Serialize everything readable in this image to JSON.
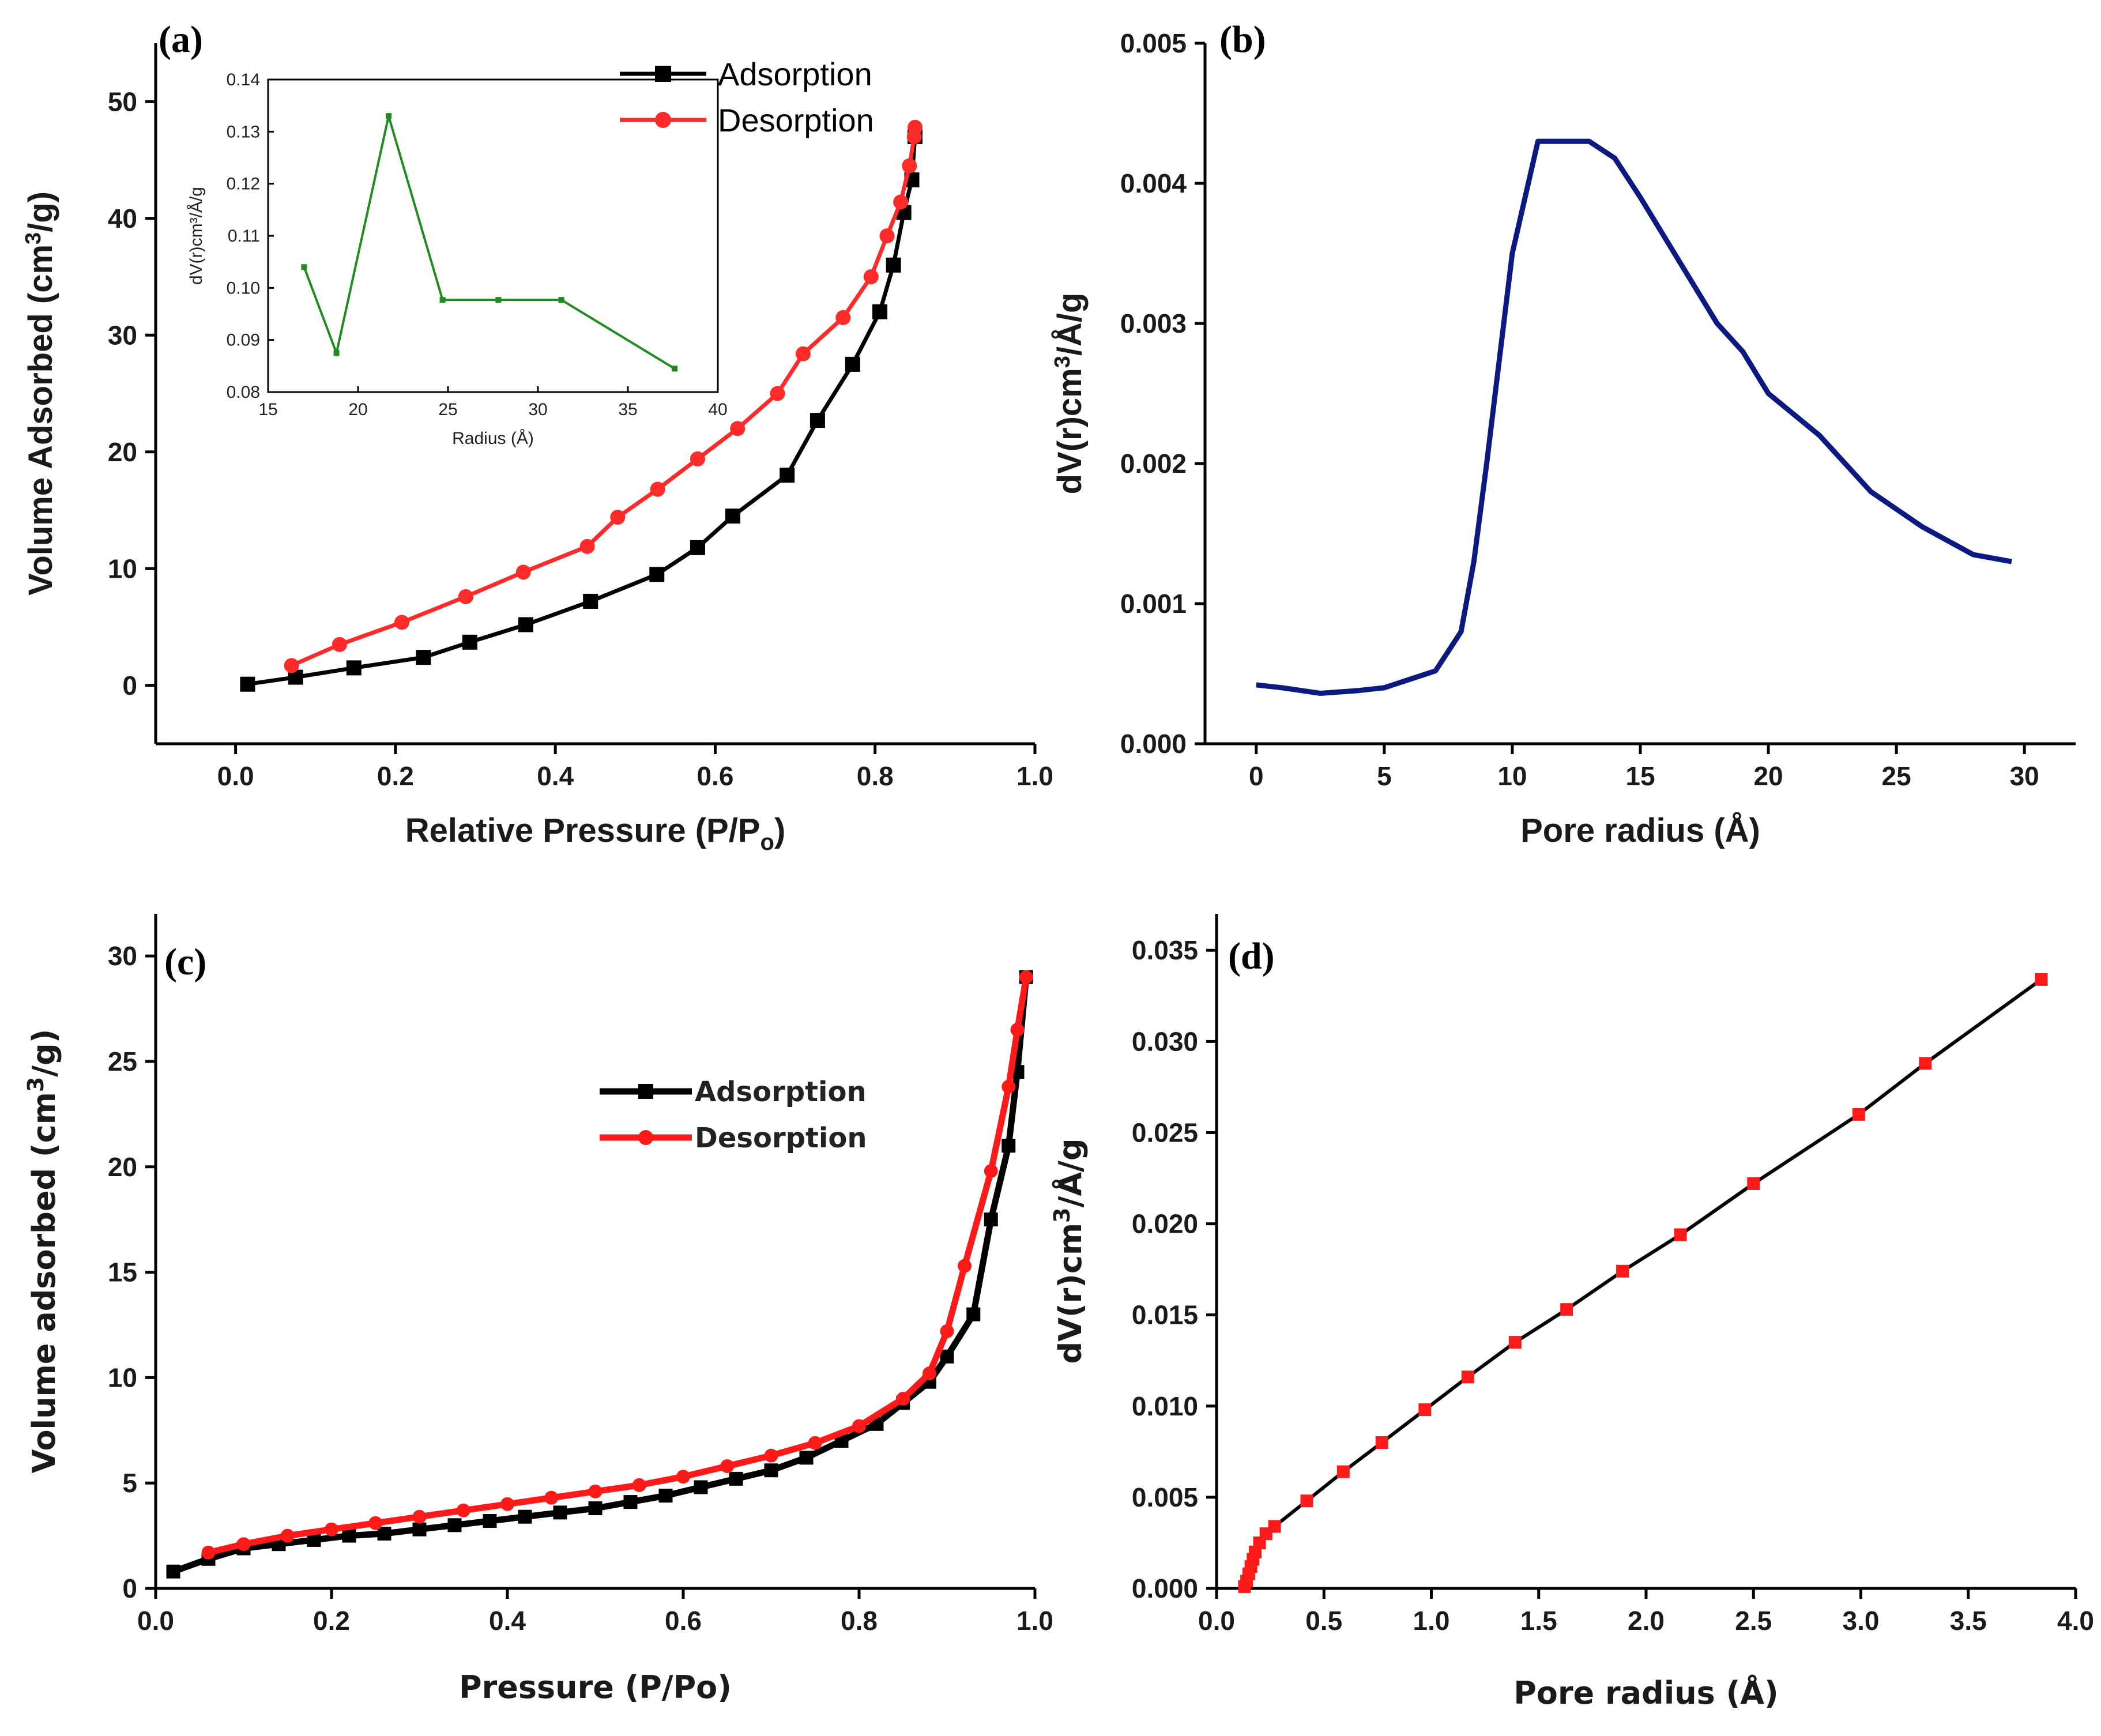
{
  "chart_data": [
    {
      "panel": "(a)",
      "type": "line",
      "title": "",
      "xlabel": "Relative Pressure (P/P",
      "xlabel_sub": "o",
      "xlabel_end": ")",
      "ylabel": "Volume Adsorbed (cm",
      "ylabel_sup": "3",
      "ylabel_end": "/g)",
      "xlim": [
        -0.1,
        1.0
      ],
      "ylim": [
        -5,
        55
      ],
      "xticks": [
        "0.0",
        "0.2",
        "0.4",
        "0.6",
        "0.8",
        "1.0"
      ],
      "xtick_values": [
        0,
        0.2,
        0.4,
        0.6,
        0.8,
        1.0
      ],
      "yticks": [
        "0",
        "10",
        "20",
        "30",
        "40",
        "50"
      ],
      "ytick_values": [
        0,
        10,
        20,
        30,
        40,
        50
      ],
      "legend_position": "top-right",
      "series": [
        {
          "name": "Adsorption",
          "color": "#000000",
          "marker": "square",
          "x": [
            0.015,
            0.075,
            0.148,
            0.235,
            0.293,
            0.363,
            0.444,
            0.527,
            0.578,
            0.622,
            0.69,
            0.728,
            0.772,
            0.806,
            0.823,
            0.836,
            0.846,
            0.85
          ],
          "y": [
            0.1,
            0.7,
            1.5,
            2.4,
            3.7,
            5.2,
            7.2,
            9.5,
            11.8,
            14.5,
            18,
            22.7,
            27.5,
            32,
            36,
            40.5,
            43.3,
            47
          ]
        },
        {
          "name": "Desorption",
          "color": "#ff2a2a",
          "marker": "circle",
          "x": [
            0.07,
            0.13,
            0.208,
            0.288,
            0.36,
            0.44,
            0.478,
            0.528,
            0.578,
            0.628,
            0.678,
            0.71,
            0.76,
            0.795,
            0.815,
            0.832,
            0.843,
            0.849,
            0.85
          ],
          "y": [
            1.7,
            3.5,
            5.4,
            7.6,
            9.7,
            11.9,
            14.4,
            16.8,
            19.4,
            22,
            25,
            28.4,
            31.5,
            35,
            38.5,
            41.4,
            44.5,
            47,
            47.8
          ]
        }
      ],
      "inset": {
        "type": "line",
        "xlabel": "Radius (Å)",
        "ylabel": "dV(r)cm³/Å/g",
        "xlim": [
          15,
          40
        ],
        "ylim": [
          0.08,
          0.14
        ],
        "xticks": [
          "15",
          "20",
          "25",
          "30",
          "35",
          "40"
        ],
        "xtick_values": [
          15,
          20,
          25,
          30,
          35,
          40
        ],
        "yticks": [
          "0.08",
          "0.09",
          "0.10",
          "0.11",
          "0.12",
          "0.13",
          "0.14"
        ],
        "ytick_values": [
          0.08,
          0.09,
          0.1,
          0.11,
          0.12,
          0.13,
          0.14
        ],
        "color": "#1e8c1e",
        "x": [
          17,
          18.8,
          21.7,
          24.7,
          27.8,
          31.3,
          37.6
        ],
        "y": [
          0.104,
          0.0875,
          0.133,
          0.0977,
          0.0977,
          0.0977,
          0.0845
        ]
      }
    },
    {
      "panel": "(b)",
      "type": "line",
      "title": "",
      "xlabel": "Pore radius (Å)",
      "ylabel": "dV(r)cm",
      "ylabel_sup": "3",
      "ylabel_end": "/Å/g",
      "xlim": [
        -2,
        32
      ],
      "ylim": [
        0.0,
        0.005
      ],
      "xticks": [
        "0",
        "5",
        "10",
        "15",
        "20",
        "25",
        "30"
      ],
      "xtick_values": [
        0,
        5,
        10,
        15,
        20,
        25,
        30
      ],
      "yticks": [
        "0.000",
        "0.001",
        "0.002",
        "0.003",
        "0.004",
        "0.005"
      ],
      "ytick_values": [
        0,
        0.001,
        0.002,
        0.003,
        0.004,
        0.005
      ],
      "series": [
        {
          "name": "dV(r)",
          "color": "#0a1a80",
          "x": [
            0,
            1,
            2.5,
            4,
            5,
            6,
            7,
            8,
            8.5,
            9,
            10,
            11,
            12,
            13,
            14,
            15,
            16,
            17,
            18,
            19,
            20,
            22,
            24,
            26,
            28,
            29.5
          ],
          "y": [
            0.00042,
            0.0004,
            0.00036,
            0.00038,
            0.0004,
            0.00046,
            0.00052,
            0.0008,
            0.0013,
            0.002,
            0.0035,
            0.0043,
            0.0043,
            0.0043,
            0.00418,
            0.0039,
            0.0036,
            0.0033,
            0.003,
            0.0028,
            0.0025,
            0.0022,
            0.0018,
            0.00155,
            0.00135,
            0.0013
          ]
        }
      ]
    },
    {
      "panel": "(c)",
      "type": "line",
      "title": "",
      "xlabel": "Pressure (P/Po)",
      "ylabel": "Volume adsorbed (cm",
      "ylabel_sup": "3",
      "ylabel_end": "/g)",
      "xlim": [
        0.0,
        1.0
      ],
      "ylim": [
        0,
        32
      ],
      "xticks": [
        "0.0",
        "0.2",
        "0.4",
        "0.6",
        "0.8",
        "1.0"
      ],
      "xtick_values": [
        0,
        0.2,
        0.4,
        0.6,
        0.8,
        1.0
      ],
      "yticks": [
        "0",
        "5",
        "10",
        "15",
        "20",
        "25",
        "30"
      ],
      "ytick_values": [
        0,
        5,
        10,
        15,
        20,
        25,
        30
      ],
      "legend_position": "center-right",
      "series": [
        {
          "name": "Adsorption",
          "color": "#000000",
          "marker": "square",
          "x": [
            0.02,
            0.06,
            0.1,
            0.14,
            0.18,
            0.22,
            0.26,
            0.3,
            0.34,
            0.38,
            0.42,
            0.46,
            0.5,
            0.54,
            0.58,
            0.62,
            0.66,
            0.7,
            0.74,
            0.78,
            0.82,
            0.85,
            0.88,
            0.9,
            0.93,
            0.95,
            0.97,
            0.98,
            0.99
          ],
          "y": [
            0.8,
            1.4,
            1.9,
            2.1,
            2.3,
            2.5,
            2.6,
            2.8,
            3.0,
            3.2,
            3.4,
            3.6,
            3.8,
            4.1,
            4.4,
            4.8,
            5.2,
            5.6,
            6.2,
            7.0,
            7.8,
            8.8,
            9.8,
            11.0,
            13,
            17.5,
            21,
            24.5,
            29
          ]
        },
        {
          "name": "Desorption",
          "color": "#ff1a1a",
          "marker": "circle",
          "x": [
            0.06,
            0.1,
            0.15,
            0.2,
            0.25,
            0.3,
            0.35,
            0.4,
            0.45,
            0.5,
            0.55,
            0.6,
            0.65,
            0.7,
            0.75,
            0.8,
            0.85,
            0.88,
            0.9,
            0.92,
            0.95,
            0.97,
            0.98,
            0.99
          ],
          "y": [
            1.7,
            2.1,
            2.5,
            2.8,
            3.1,
            3.4,
            3.7,
            4.0,
            4.3,
            4.6,
            4.9,
            5.3,
            5.8,
            6.3,
            6.9,
            7.7,
            9.0,
            10.2,
            12.2,
            15.3,
            19.8,
            23.8,
            26.5,
            29
          ]
        }
      ]
    },
    {
      "panel": "(d)",
      "type": "line",
      "title": "",
      "xlabel": "Pore radius (Å)",
      "ylabel": "dV(r)cm",
      "ylabel_sup": "3",
      "ylabel_end": "/Å/g",
      "xlim": [
        0.0,
        4.0
      ],
      "ylim": [
        0.0,
        0.037
      ],
      "xticks": [
        "0.0",
        "0.5",
        "1.0",
        "1.5",
        "2.0",
        "2.5",
        "3.0",
        "3.5",
        "4.0"
      ],
      "xtick_values": [
        0,
        0.5,
        1,
        1.5,
        2,
        2.5,
        3,
        3.5,
        4
      ],
      "yticks": [
        "0.000",
        "0.005",
        "0.010",
        "0.015",
        "0.020",
        "0.025",
        "0.030",
        "0.035"
      ],
      "ytick_values": [
        0,
        0.005,
        0.01,
        0.015,
        0.02,
        0.025,
        0.03,
        0.035
      ],
      "series": [
        {
          "name": "dV(r)",
          "color": "#000000",
          "marker_color": "#ff1a1a",
          "marker": "square",
          "x": [
            0.13,
            0.14,
            0.15,
            0.16,
            0.17,
            0.18,
            0.2,
            0.23,
            0.27,
            0.42,
            0.59,
            0.77,
            0.97,
            1.17,
            1.39,
            1.63,
            1.89,
            2.16,
            2.5,
            2.99,
            3.3,
            3.84
          ],
          "y": [
            0.0001,
            0.0004,
            0.0008,
            0.0012,
            0.0016,
            0.002,
            0.0025,
            0.003,
            0.0034,
            0.0048,
            0.0064,
            0.008,
            0.0098,
            0.0116,
            0.0135,
            0.0153,
            0.0174,
            0.0194,
            0.0222,
            0.026,
            0.0288,
            0.0334
          ]
        }
      ]
    }
  ]
}
